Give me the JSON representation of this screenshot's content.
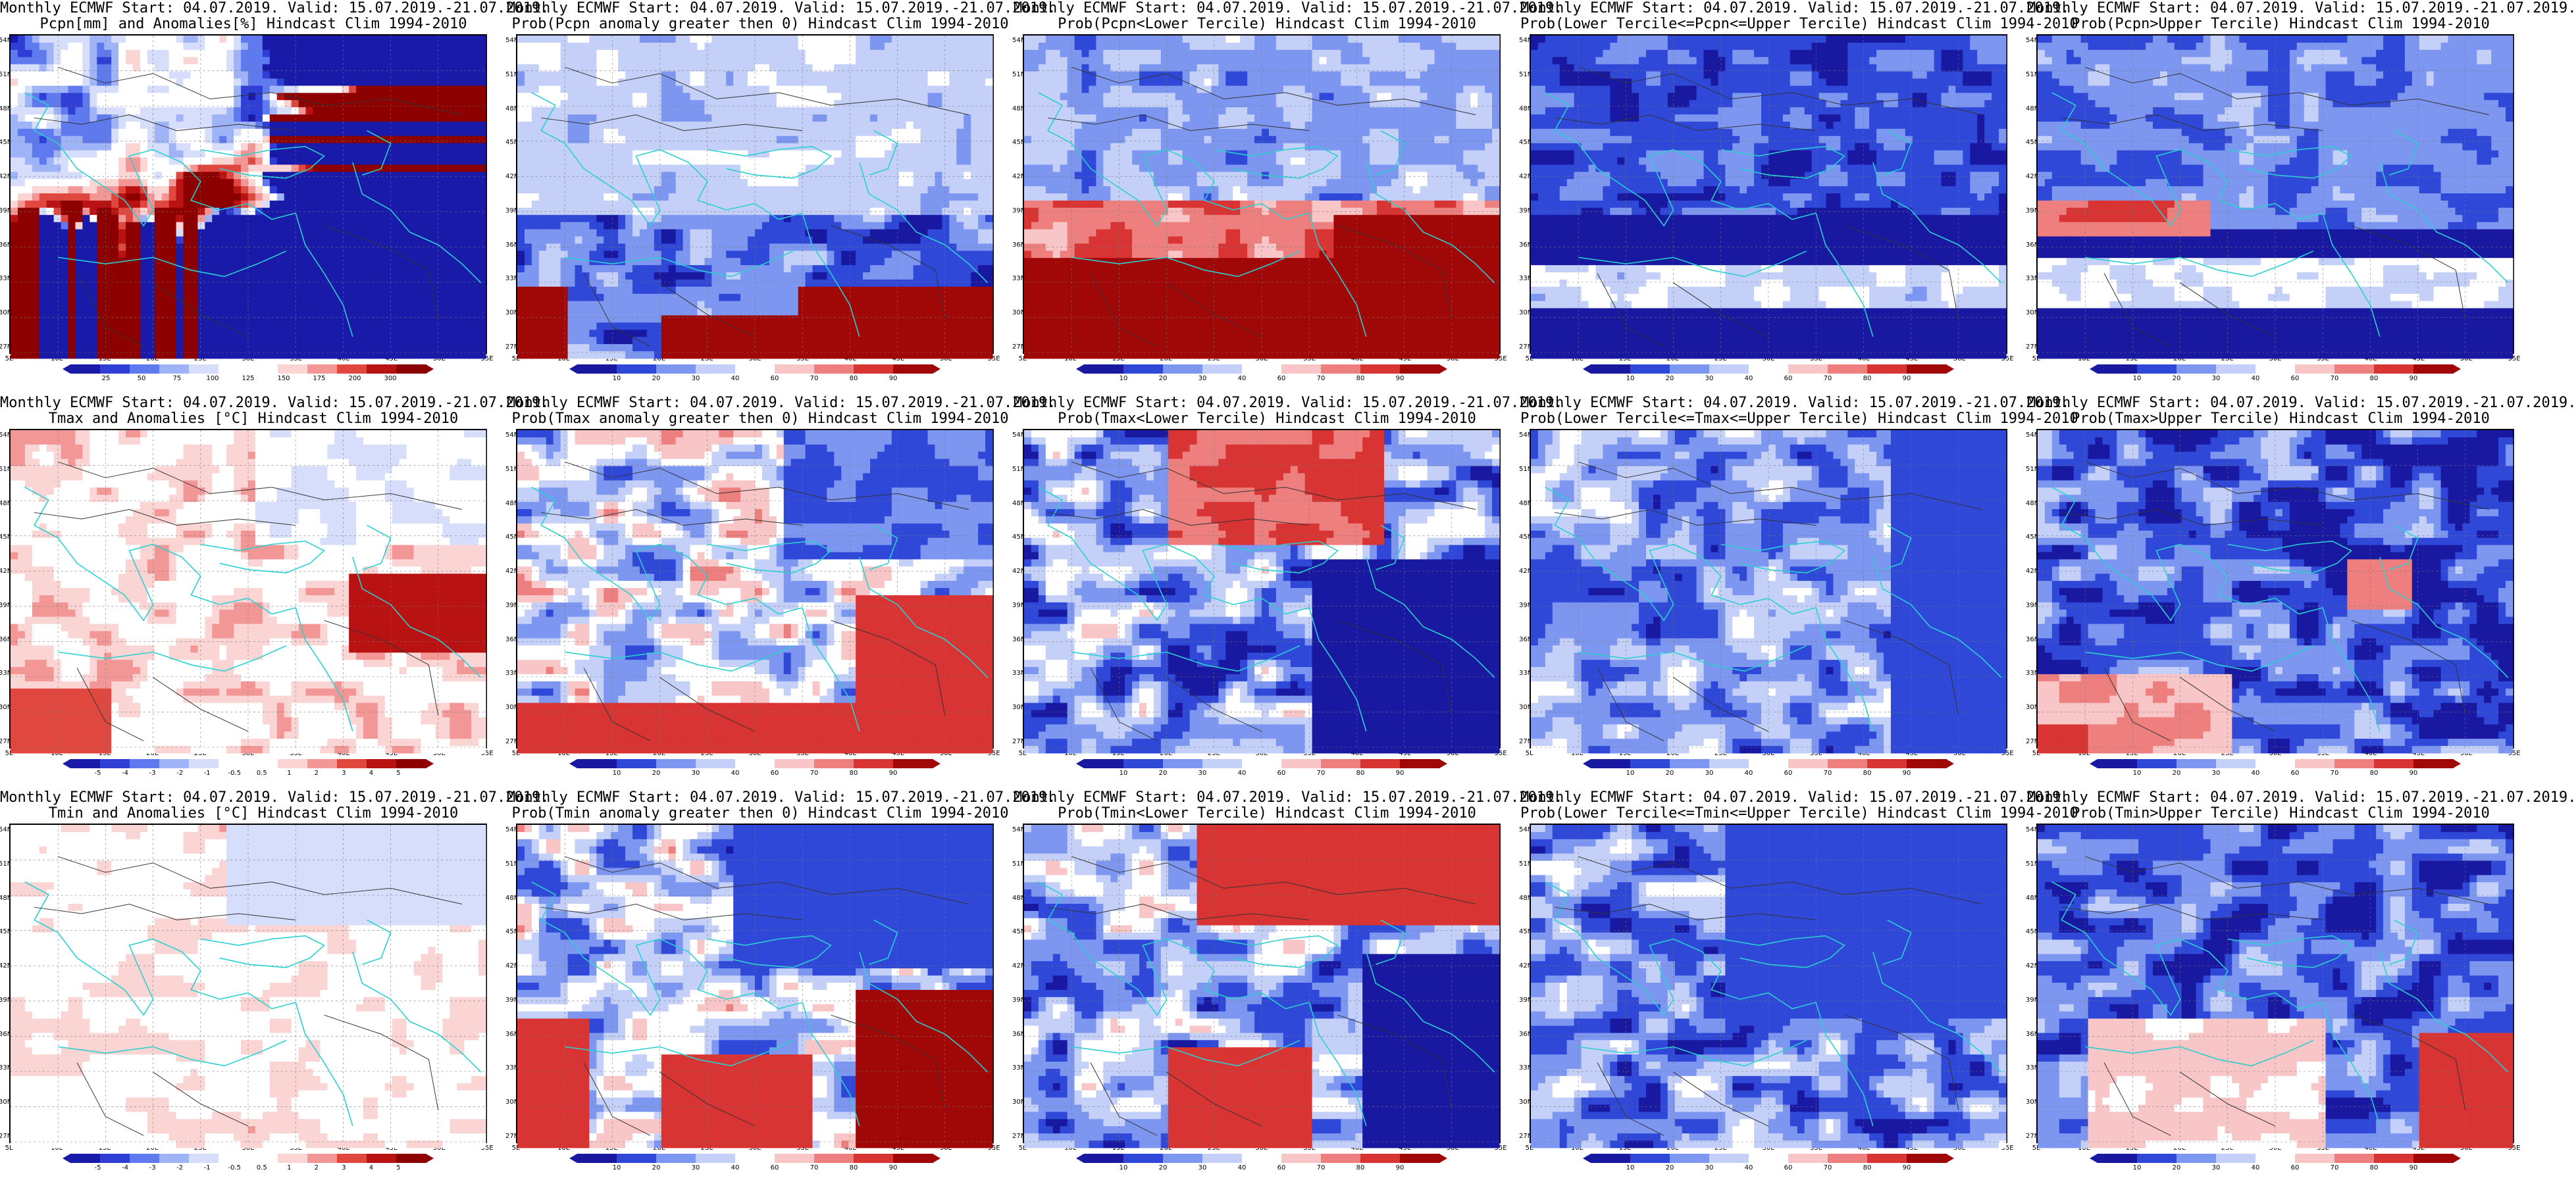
{
  "lat_labels": [
    "54N",
    "51N",
    "48N",
    "45N",
    "42N",
    "39N",
    "36N",
    "33N",
    "30N",
    "27N"
  ],
  "lon_labels": [
    "5E",
    "10E",
    "15E",
    "20E",
    "25E",
    "30E",
    "35E",
    "40E",
    "45E",
    "50E",
    "55E"
  ],
  "palettes": {
    "anomaly": [
      "#1a1aa8",
      "#2f3fd6",
      "#5f79ee",
      "#9fb3f7",
      "#d6defb",
      "#ffffff",
      "#ffffff",
      "#fbd4d4",
      "#f39696",
      "#e0483f",
      "#b81212",
      "#8c0000"
    ],
    "prob": [
      "#1818a0",
      "#3048d8",
      "#7d96f0",
      "#c4d0f8",
      "#ffffff",
      "#f8c6c6",
      "#ee7f7f",
      "#d83434",
      "#a00808"
    ]
  },
  "rows": [
    {
      "panels": [
        {
          "title_line1": "Monthly ECMWF Start: 04.07.2019. Valid: 15.07.2019.-21.07.2019.",
          "title_line2": "Pcpn[mm] and Anomalies[%] Hindcast Clim 1994-2010",
          "scheme": "pcpn_anom",
          "colorbar_labels": [
            "25",
            "50",
            "75",
            "100",
            "125",
            "150",
            "175",
            "200",
            "300"
          ]
        },
        {
          "title_line1": "Monthly ECMWF Start: 04.07.2019. Valid: 15.07.2019.-21.07.2019.",
          "title_line2": "Prob(Pcpn anomaly greater then 0) Hindcast Clim 1994-2010",
          "scheme": "pcpn_gt0",
          "colorbar_labels": [
            "10",
            "20",
            "30",
            "40",
            "60",
            "70",
            "80",
            "90"
          ]
        },
        {
          "title_line1": "Monthly ECMWF Start: 04.07.2019. Valid: 15.07.2019.-21.07.2019.",
          "title_line2": "Prob(Pcpn<Lower Tercile) Hindcast Clim 1994-2010",
          "scheme": "pcpn_lower",
          "colorbar_labels": [
            "10",
            "20",
            "30",
            "40",
            "60",
            "70",
            "80",
            "90"
          ]
        },
        {
          "title_line1": "Monthly ECMWF Start: 04.07.2019. Valid: 15.07.2019.-21.07.2019.",
          "title_line2": "Prob(Lower Tercile<=Pcpn<=Upper Tercile) Hindcast Clim 1994-2010",
          "scheme": "pcpn_mid",
          "colorbar_labels": [
            "10",
            "20",
            "30",
            "40",
            "60",
            "70",
            "80",
            "90"
          ]
        },
        {
          "title_line1": "Monthly ECMWF Start: 04.07.2019. Valid: 15.07.2019.-21.07.2019.",
          "title_line2": "Prob(Pcpn>Upper Tercile) Hindcast Clim 1994-2010",
          "scheme": "pcpn_upper",
          "colorbar_labels": [
            "10",
            "20",
            "30",
            "40",
            "60",
            "70",
            "80",
            "90"
          ]
        }
      ]
    },
    {
      "panels": [
        {
          "title_line1": "Monthly ECMWF Start: 04.07.2019. Valid: 15.07.2019.-21.07.2019.",
          "title_line2": "Tmax and Anomalies [°C] Hindcast Clim 1994-2010",
          "scheme": "tmax_anom",
          "colorbar_labels": [
            "-5",
            "-4",
            "-3",
            "-2",
            "-1",
            "-0.5",
            "0.5",
            "1",
            "2",
            "3",
            "4",
            "5"
          ]
        },
        {
          "title_line1": "Monthly ECMWF Start: 04.07.2019. Valid: 15.07.2019.-21.07.2019.",
          "title_line2": "Prob(Tmax anomaly greater then 0) Hindcast Clim 1994-2010",
          "scheme": "tmax_gt0",
          "colorbar_labels": [
            "10",
            "20",
            "30",
            "40",
            "60",
            "70",
            "80",
            "90"
          ]
        },
        {
          "title_line1": "Monthly ECMWF Start: 04.07.2019. Valid: 15.07.2019.-21.07.2019.",
          "title_line2": "Prob(Tmax<Lower Tercile) Hindcast Clim 1994-2010",
          "scheme": "tmax_lower",
          "colorbar_labels": [
            "10",
            "20",
            "30",
            "40",
            "60",
            "70",
            "80",
            "90"
          ]
        },
        {
          "title_line1": "Monthly ECMWF Start: 04.07.2019. Valid: 15.07.2019.-21.07.2019.",
          "title_line2": "Prob(Lower Tercile<=Tmax<=Upper Tercile) Hindcast Clim 1994-2010",
          "scheme": "tmax_mid",
          "colorbar_labels": [
            "10",
            "20",
            "30",
            "40",
            "60",
            "70",
            "80",
            "90"
          ]
        },
        {
          "title_line1": "Monthly ECMWF Start: 04.07.2019. Valid: 15.07.2019.-21.07.2019.",
          "title_line2": "Prob(Tmax>Upper Tercile) Hindcast Clim 1994-2010",
          "scheme": "tmax_upper",
          "colorbar_labels": [
            "10",
            "20",
            "30",
            "40",
            "60",
            "70",
            "80",
            "90"
          ]
        }
      ]
    },
    {
      "panels": [
        {
          "title_line1": "Monthly ECMWF Start: 04.07.2019. Valid: 15.07.2019.-21.07.2019.",
          "title_line2": "Tmin and Anomalies [°C] Hindcast Clim 1994-2010",
          "scheme": "tmin_anom",
          "colorbar_labels": [
            "-5",
            "-4",
            "-3",
            "-2",
            "-1",
            "-0.5",
            "0.5",
            "1",
            "2",
            "3",
            "4",
            "5"
          ]
        },
        {
          "title_line1": "Monthly ECMWF Start: 04.07.2019. Valid: 15.07.2019.-21.07.2019.",
          "title_line2": "Prob(Tmin anomaly greater then 0) Hindcast Clim 1994-2010",
          "scheme": "tmin_gt0",
          "colorbar_labels": [
            "10",
            "20",
            "30",
            "40",
            "60",
            "70",
            "80",
            "90"
          ]
        },
        {
          "title_line1": "Monthly ECMWF Start: 04.07.2019. Valid: 15.07.2019.-21.07.2019.",
          "title_line2": "Prob(Tmin<Lower Tercile) Hindcast Clim 1994-2010",
          "scheme": "tmin_lower",
          "colorbar_labels": [
            "10",
            "20",
            "30",
            "40",
            "60",
            "70",
            "80",
            "90"
          ]
        },
        {
          "title_line1": "Monthly ECMWF Start: 04.07.2019. Valid: 15.07.2019.-21.07.2019.",
          "title_line2": "Prob(Lower Tercile<=Tmin<=Upper Tercile) Hindcast Clim 1994-2010",
          "scheme": "tmin_mid",
          "colorbar_labels": [
            "10",
            "20",
            "30",
            "40",
            "60",
            "70",
            "80",
            "90"
          ]
        },
        {
          "title_line1": "Monthly ECMWF Start: 04.07.2019. Valid: 15.07.2019.-21.07.2019.",
          "title_line2": "Prob(Tmin>Upper Tercile) Hindcast Clim 1994-2010",
          "scheme": "tmin_upper",
          "colorbar_labels": [
            "10",
            "20",
            "30",
            "40",
            "60",
            "70",
            "80",
            "90"
          ]
        }
      ]
    }
  ]
}
